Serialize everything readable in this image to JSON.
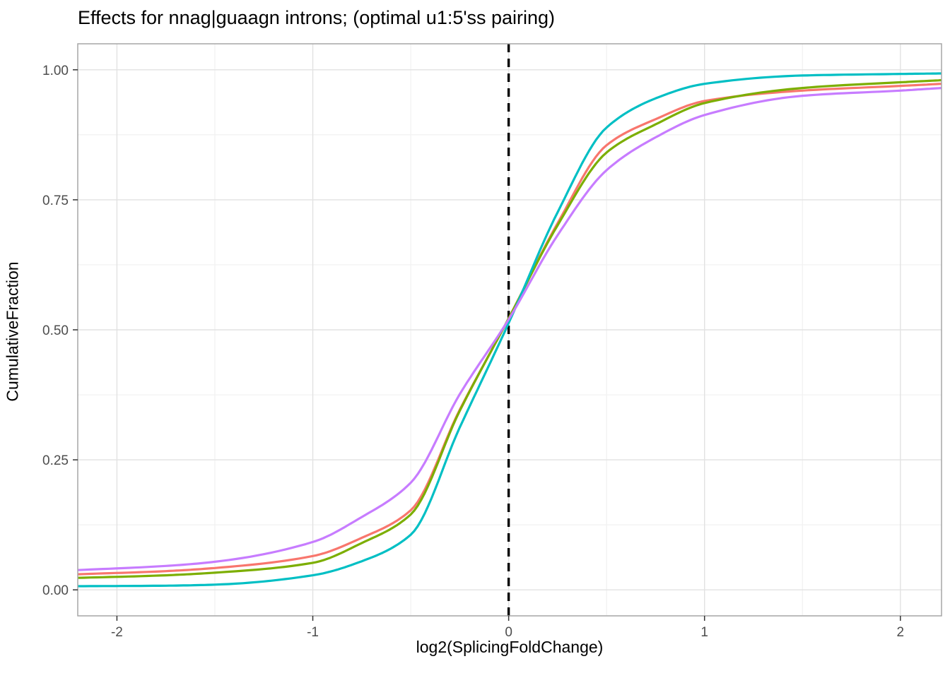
{
  "chart_data": {
    "type": "line",
    "curve_type": "ecdf",
    "title": "Effects for nnag|guaagn introns; (optimal u1:5'ss pairing)",
    "xlabel": "log2(SplicingFoldChange)",
    "ylabel": "CumulativeFraction",
    "xlim": [
      -2.2,
      2.21
    ],
    "ylim": [
      -0.05,
      1.05
    ],
    "grid": true,
    "legend": "none",
    "x_ticks": {
      "values": [
        -2,
        -1,
        0,
        1,
        2
      ],
      "labels": [
        "-2",
        "-1",
        "0",
        "1",
        "2"
      ]
    },
    "y_ticks": {
      "values": [
        0,
        0.25,
        0.5,
        0.75,
        1
      ],
      "labels": [
        "0.00",
        "0.25",
        "0.50",
        "0.75",
        "1.00"
      ]
    },
    "x_minor_ticks": [
      -1.5,
      -0.5,
      0.5,
      1.5
    ],
    "y_minor_ticks": [
      0.125,
      0.375,
      0.625,
      0.875
    ],
    "reference_line": {
      "x": 0,
      "style": "dashed",
      "color": "#000000",
      "width": 3.4,
      "dash": "12 9"
    },
    "series": [
      {
        "name": "salmon",
        "color": "#F8766D",
        "points": [
          [
            -2.2,
            0.03
          ],
          [
            -1.75,
            0.036
          ],
          [
            -1.5,
            0.042
          ],
          [
            -1.0,
            0.065
          ],
          [
            -0.75,
            0.1
          ],
          [
            -0.5,
            0.153
          ],
          [
            -0.25,
            0.346
          ],
          [
            0,
            0.522
          ],
          [
            0.25,
            0.705
          ],
          [
            0.5,
            0.855
          ],
          [
            0.75,
            0.905
          ],
          [
            1.0,
            0.94
          ],
          [
            1.5,
            0.96
          ],
          [
            2.0,
            0.969
          ],
          [
            2.21,
            0.973
          ]
        ]
      },
      {
        "name": "olive-green",
        "color": "#7CAE00",
        "points": [
          [
            -2.2,
            0.023
          ],
          [
            -1.75,
            0.028
          ],
          [
            -1.5,
            0.033
          ],
          [
            -1.0,
            0.052
          ],
          [
            -0.75,
            0.09
          ],
          [
            -0.5,
            0.145
          ],
          [
            -0.25,
            0.344
          ],
          [
            0,
            0.522
          ],
          [
            0.25,
            0.701
          ],
          [
            0.5,
            0.841
          ],
          [
            0.75,
            0.895
          ],
          [
            1.0,
            0.936
          ],
          [
            1.5,
            0.965
          ],
          [
            2.0,
            0.976
          ],
          [
            2.21,
            0.98
          ]
        ]
      },
      {
        "name": "teal",
        "color": "#00BFC4",
        "points": [
          [
            -2.2,
            0.007
          ],
          [
            -1.75,
            0.008
          ],
          [
            -1.5,
            0.01
          ],
          [
            -1.0,
            0.028
          ],
          [
            -0.75,
            0.055
          ],
          [
            -0.5,
            0.106
          ],
          [
            -0.25,
            0.312
          ],
          [
            0,
            0.513
          ],
          [
            0.25,
            0.726
          ],
          [
            0.5,
            0.889
          ],
          [
            0.75,
            0.945
          ],
          [
            1.0,
            0.973
          ],
          [
            1.5,
            0.989
          ],
          [
            2.0,
            0.992
          ],
          [
            2.21,
            0.993
          ]
        ]
      },
      {
        "name": "purple",
        "color": "#C77CFF",
        "points": [
          [
            -2.2,
            0.038
          ],
          [
            -1.75,
            0.046
          ],
          [
            -1.5,
            0.054
          ],
          [
            -1.0,
            0.092
          ],
          [
            -0.75,
            0.14
          ],
          [
            -0.5,
            0.206
          ],
          [
            -0.25,
            0.376
          ],
          [
            0,
            0.52
          ],
          [
            0.25,
            0.682
          ],
          [
            0.5,
            0.807
          ],
          [
            0.75,
            0.87
          ],
          [
            1.0,
            0.913
          ],
          [
            1.5,
            0.95
          ],
          [
            2.0,
            0.96
          ],
          [
            2.21,
            0.965
          ]
        ]
      }
    ],
    "style": {
      "panel_bg": "#ffffff",
      "grid_major": "#e2e2e2",
      "grid_minor": "#f1f1f1",
      "panel_border": "#a6a6a6",
      "tick_color": "#333333",
      "tick_label_color": "#4d4d4d",
      "line_width": 3.2,
      "tick_label_size": 19
    }
  }
}
